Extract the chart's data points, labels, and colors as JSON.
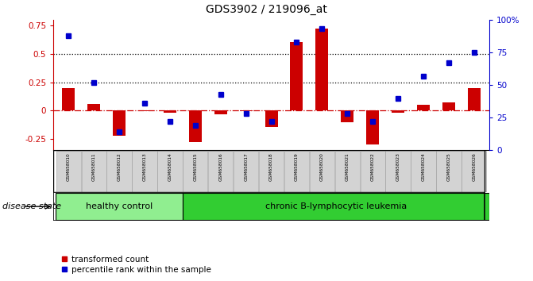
{
  "title": "GDS3902 / 219096_at",
  "samples": [
    "GSM658010",
    "GSM658011",
    "GSM658012",
    "GSM658013",
    "GSM658014",
    "GSM658015",
    "GSM658016",
    "GSM658017",
    "GSM658018",
    "GSM658019",
    "GSM658020",
    "GSM658021",
    "GSM658022",
    "GSM658023",
    "GSM658024",
    "GSM658025",
    "GSM658026"
  ],
  "red_values": [
    0.2,
    0.055,
    -0.22,
    -0.005,
    -0.018,
    -0.275,
    -0.03,
    -0.008,
    -0.145,
    0.6,
    0.72,
    -0.1,
    -0.295,
    -0.018,
    0.05,
    0.07,
    0.2
  ],
  "blue_values": [
    88,
    52,
    14,
    36,
    22,
    19,
    43,
    28,
    22,
    83,
    93,
    28,
    22,
    40,
    57,
    67,
    75
  ],
  "n_healthy": 5,
  "n_total": 17,
  "healthy_label": "healthy control",
  "cll_label": "chronic B-lymphocytic leukemia",
  "healthy_color": "#90EE90",
  "cll_color": "#32CD32",
  "left_ylim": [
    -0.35,
    0.8
  ],
  "right_ylim": [
    0,
    100
  ],
  "left_yticks": [
    -0.25,
    0.0,
    0.25,
    0.5,
    0.75
  ],
  "right_yticks": [
    0,
    25,
    50,
    75,
    100
  ],
  "right_yticklabels": [
    "0",
    "25",
    "50",
    "75",
    "100%"
  ],
  "hlines": [
    0.25,
    0.5
  ],
  "red_color": "#CC0000",
  "blue_color": "#0000CC",
  "bar_width": 0.5,
  "bg": "#ffffff",
  "label_box_face": "#D3D3D3",
  "label_box_bg": "#BEBEBE",
  "disease_state_text": "disease state",
  "legend1": "transformed count",
  "legend2": "percentile rank within the sample"
}
